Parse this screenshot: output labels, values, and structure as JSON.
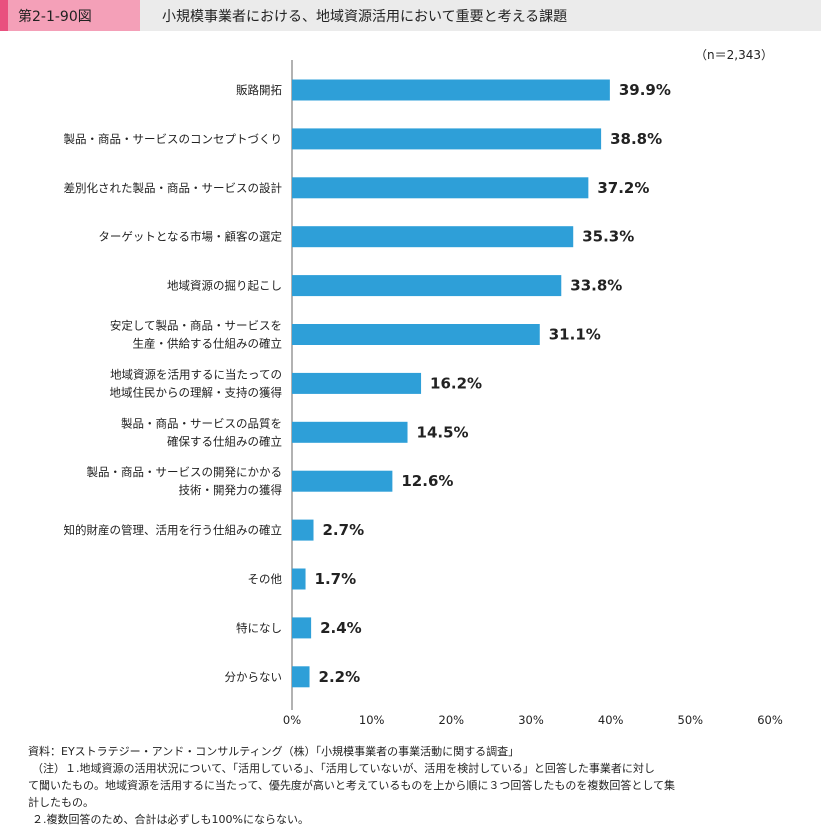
{
  "figure": {
    "number": "第2-1-90図",
    "title": "小規模事業者における、地域資源活用において重要と考える課題",
    "sample_size": "（n＝2,343）"
  },
  "chart_data": {
    "type": "bar",
    "orientation": "horizontal",
    "categories": [
      [
        "販路開拓"
      ],
      [
        "製品・商品・サービスのコンセプトづくり"
      ],
      [
        "差別化された製品・商品・サービスの設計"
      ],
      [
        "ターゲットとなる市場・顧客の選定"
      ],
      [
        "地域資源の掘り起こし"
      ],
      [
        "安定して製品・商品・サービスを",
        "生産・供給する仕組みの確立"
      ],
      [
        "地域資源を活用するに当たっての",
        "地域住民からの理解・支持の獲得"
      ],
      [
        "製品・商品・サービスの品質を",
        "確保する仕組みの確立"
      ],
      [
        "製品・商品・サービスの開発にかかる",
        "技術・開発力の獲得"
      ],
      [
        "知的財産の管理、活用を行う仕組みの確立"
      ],
      [
        "その他"
      ],
      [
        "特になし"
      ],
      [
        "分からない"
      ]
    ],
    "values": [
      39.9,
      38.8,
      37.2,
      35.3,
      33.8,
      31.1,
      16.2,
      14.5,
      12.6,
      2.7,
      1.7,
      2.4,
      2.2
    ],
    "value_labels": [
      "39.9%",
      "38.8%",
      "37.2%",
      "35.3%",
      "33.8%",
      "31.1%",
      "16.2%",
      "14.5%",
      "12.6%",
      "2.7%",
      "1.7%",
      "2.4%",
      "2.2%"
    ],
    "xlim": [
      0,
      60
    ],
    "xticks": [
      0,
      10,
      20,
      30,
      40,
      50,
      60
    ],
    "xtick_labels": [
      "0%",
      "10%",
      "20%",
      "30%",
      "40%",
      "50%",
      "60%"
    ],
    "grid": false,
    "bar_color": "#2e9fd8"
  },
  "notes": {
    "source": "資料：EYストラテジー・アンド・コンサルティング（株）「小規模事業者の事業活動に関する調査」",
    "note1_line1": "（注）１.地域資源の活用状況について、「活用している」、「活用していないが、活用を検討している」と回答した事業者に対し",
    "note1_line2": "て聞いたもの。地域資源を活用するに当たって、優先度が高いと考えているものを上から順に３つ回答したものを複数回答として集",
    "note1_line3": "計したもの。",
    "note2": "２.複数回答のため、合計は必ずしも100%にならない。"
  }
}
